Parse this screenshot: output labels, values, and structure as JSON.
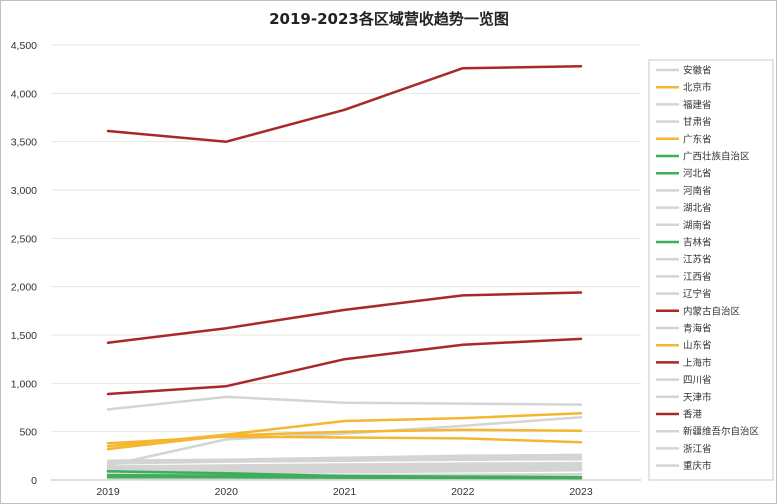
{
  "chart_data": {
    "type": "line",
    "title": "2019-2023各区域营收趋势一览图",
    "xlabel": "",
    "ylabel": "",
    "categories": [
      "2019",
      "2020",
      "2021",
      "2022",
      "2023"
    ],
    "ylim": [
      0,
      4500
    ],
    "yticks": [
      0,
      500,
      1000,
      1500,
      2000,
      2500,
      3000,
      3500,
      4000,
      4500
    ],
    "ytick_labels": [
      "0",
      "500",
      "1,000",
      "1,500",
      "2,000",
      "2,500",
      "3,000",
      "3,500",
      "4,000",
      "4,500"
    ],
    "grid": true,
    "legend_position": "right",
    "series": [
      {
        "name": "安徽省",
        "color": "#d4d4d4",
        "values": [
          60,
          70,
          80,
          90,
          100
        ]
      },
      {
        "name": "北京市",
        "color": "#f5b630",
        "values": [
          380,
          450,
          440,
          430,
          390
        ]
      },
      {
        "name": "福建省",
        "color": "#d4d4d4",
        "values": [
          120,
          135,
          150,
          165,
          175
        ]
      },
      {
        "name": "甘肃省",
        "color": "#d4d4d4",
        "values": [
          15,
          18,
          20,
          22,
          25
        ]
      },
      {
        "name": "广东省",
        "color": "#f5b630",
        "values": [
          350,
          470,
          610,
          640,
          690
        ]
      },
      {
        "name": "广西壮族自治区",
        "color": "#3dae5a",
        "values": [
          30,
          28,
          25,
          22,
          20
        ]
      },
      {
        "name": "河北省",
        "color": "#3dae5a",
        "values": [
          90,
          70,
          40,
          30,
          25
        ]
      },
      {
        "name": "河南省",
        "color": "#d4d4d4",
        "values": [
          100,
          110,
          120,
          130,
          140
        ]
      },
      {
        "name": "湖北省",
        "color": "#d4d4d4",
        "values": [
          80,
          90,
          100,
          110,
          120
        ]
      },
      {
        "name": "湖南省",
        "color": "#d4d4d4",
        "values": [
          70,
          80,
          90,
          100,
          110
        ]
      },
      {
        "name": "吉林省",
        "color": "#3dae5a",
        "values": [
          50,
          45,
          40,
          35,
          30
        ]
      },
      {
        "name": "江苏省",
        "color": "#d4d4d4",
        "values": [
          730,
          860,
          800,
          790,
          780
        ]
      },
      {
        "name": "江西省",
        "color": "#d4d4d4",
        "values": [
          150,
          420,
          480,
          560,
          650
        ]
      },
      {
        "name": "辽宁省",
        "color": "#d4d4d4",
        "values": [
          200,
          210,
          230,
          250,
          260
        ]
      },
      {
        "name": "内蒙古自治区",
        "color": "#a8282b",
        "values": [
          1420,
          1570,
          1760,
          1910,
          1940
        ]
      },
      {
        "name": "青海省",
        "color": "#d4d4d4",
        "values": [
          10,
          12,
          14,
          15,
          16
        ]
      },
      {
        "name": "山东省",
        "color": "#f5b630",
        "values": [
          320,
          460,
          500,
          520,
          510
        ]
      },
      {
        "name": "上海市",
        "color": "#a8282b",
        "values": [
          890,
          970,
          1250,
          1400,
          1460
        ]
      },
      {
        "name": "四川省",
        "color": "#d4d4d4",
        "values": [
          170,
          190,
          200,
          210,
          215
        ]
      },
      {
        "name": "天津市",
        "color": "#d4d4d4",
        "values": [
          140,
          150,
          160,
          170,
          175
        ]
      },
      {
        "name": "香港",
        "color": "#a8282b",
        "values": [
          3610,
          3500,
          3830,
          4260,
          4280
        ]
      },
      {
        "name": "新疆维吾尔自治区",
        "color": "#d4d4d4",
        "values": [
          40,
          45,
          50,
          55,
          60
        ]
      },
      {
        "name": "浙江省",
        "color": "#d4d4d4",
        "values": [
          180,
          195,
          210,
          225,
          235
        ]
      },
      {
        "name": "重庆市",
        "color": "#d4d4d4",
        "values": [
          110,
          120,
          130,
          140,
          150
        ]
      }
    ]
  }
}
